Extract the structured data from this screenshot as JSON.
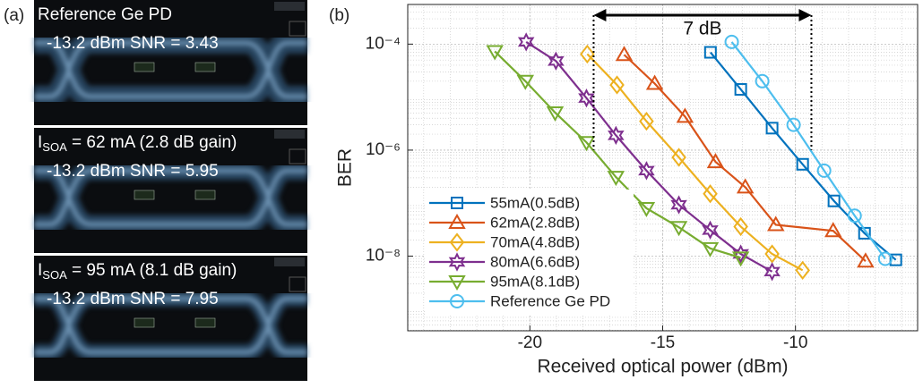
{
  "panel_labels": [
    "(a)",
    "(b)"
  ],
  "eye_diagrams": [
    {
      "title": {
        "main": "Reference Ge PD"
      },
      "subtitle": "-13.2 dBm SNR = 3.43"
    },
    {
      "title": {
        "main": "I",
        "sub": "SOA",
        "rest": " = 62 mA (2.8 dB gain)"
      },
      "subtitle": "-13.2 dBm SNR = 5.95"
    },
    {
      "title": {
        "main": "I",
        "sub": "SOA",
        "rest": " = 95 mA (8.1 dB gain)"
      },
      "subtitle": "-13.2 dBm SNR = 7.95"
    }
  ],
  "chart_data": {
    "type": "line",
    "xlabel": "Received optical power (dBm)",
    "ylabel": "BER",
    "xlim": [
      -24.6,
      -5.4
    ],
    "xticks": [
      -20,
      -15,
      -10
    ],
    "ylim": [
      3.9e-10,
      0.00056
    ],
    "yscale": "log",
    "yticks": [
      {
        "value": 0.0001,
        "label": "10⁻⁴"
      },
      {
        "value": 1e-06,
        "label": "10⁻⁶"
      },
      {
        "value": 1e-08,
        "label": "10⁻⁸"
      }
    ],
    "grid": true,
    "legend": "lower left",
    "annotation": {
      "text": "7 dB",
      "x": [
        -17.6,
        -9.4
      ],
      "y": 1e-06
    },
    "series": [
      {
        "name": "55mA(0.5dB)",
        "color": "#0072bd",
        "marker": "square",
        "x": [
          -13.2,
          -12.06,
          -10.88,
          -9.73,
          -8.55,
          -7.4,
          -6.22
        ],
        "values": [
          7e-05,
          1.4e-05,
          2.6e-06,
          5.4e-07,
          1.1e-07,
          2.7e-08,
          8.5e-09
        ]
      },
      {
        "name": "62mA(2.8dB)",
        "color": "#d95319",
        "marker": "triangle-up",
        "x": [
          -16.45,
          -15.3,
          -14.16,
          -13.01,
          -11.89,
          -10.74,
          -8.58,
          -7.36
        ],
        "values": [
          6.3e-05,
          1.8e-05,
          4.3e-06,
          6e-07,
          2e-07,
          3.9e-08,
          3e-08,
          8e-09
        ]
      },
      {
        "name": "70mA(4.8dB)",
        "color": "#edb120",
        "marker": "diamond",
        "x": [
          -17.84,
          -16.72,
          -15.61,
          -14.39,
          -13.21,
          -12.06,
          -10.88,
          -9.73
        ],
        "values": [
          6.5e-05,
          1.7e-05,
          3.5e-06,
          7.3e-07,
          1.5e-07,
          3.6e-08,
          1.1e-08,
          5.4e-09
        ]
      },
      {
        "name": "80mA(6.6dB)",
        "color": "#7e2f8e",
        "marker": "hexagram",
        "x": [
          -20.14,
          -19.02,
          -17.87,
          -16.76,
          -15.61,
          -14.39,
          -13.21,
          -12.06,
          -10.88
        ],
        "values": [
          0.00011,
          4.8e-05,
          9.6e-06,
          1.9e-06,
          4.1e-07,
          9.3e-08,
          3.1e-08,
          1.1e-08,
          5.1e-09
        ]
      },
      {
        "name": "95mA(8.1dB)",
        "color": "#77ac30",
        "marker": "triangle-down",
        "x": [
          -21.32,
          -20.17,
          -19.05,
          -17.87,
          -16.76,
          -15.61,
          -14.39,
          -13.21,
          -12.06
        ],
        "values": [
          7.3e-05,
          2e-05,
          5.1e-06,
          1.4e-06,
          3.1e-07,
          8e-08,
          3.5e-08,
          1.4e-08,
          9.3e-09
        ]
      },
      {
        "name": "Reference Ge PD",
        "color": "#4dbeee",
        "marker": "circle",
        "x": [
          -12.4,
          -11.25,
          -10.07,
          -8.92,
          -7.77,
          -6.62
        ],
        "values": [
          0.00011,
          2e-05,
          3e-06,
          4.1e-07,
          5.8e-08,
          8.9e-09
        ]
      }
    ]
  }
}
